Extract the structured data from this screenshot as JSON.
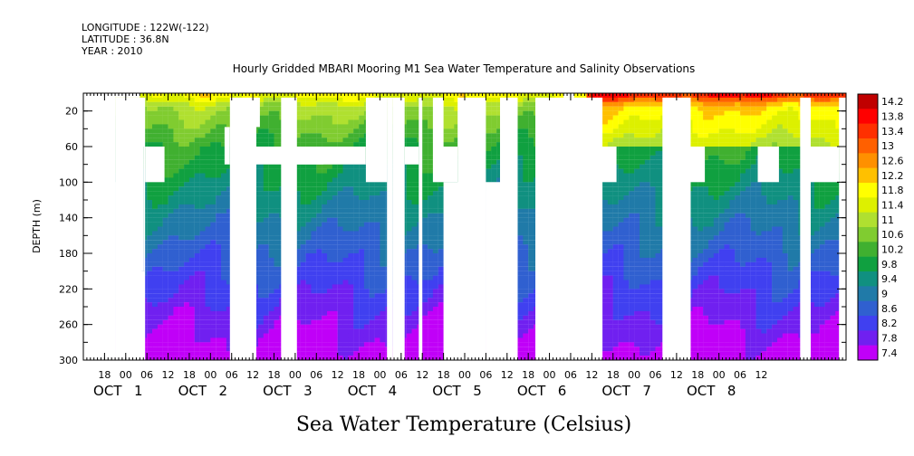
{
  "header": {
    "longitude": "LONGITUDE : 122W(-122)",
    "latitude": "LATITUDE : 36.8N",
    "year": "YEAR : 2010"
  },
  "chart_data": {
    "type": "heatmap",
    "title": "Hourly Gridded MBARI Mooring M1 Sea Water Temperature and Salinity Observations",
    "xlabel": "Sea Water Temperature (Celsius)",
    "ylabel": "DEPTH (m)",
    "xlim_hours": [
      12,
      228
    ],
    "ylim": [
      300,
      0
    ],
    "y_ticks": [
      20,
      60,
      100,
      140,
      180,
      220,
      260,
      300
    ],
    "x_hour_ticks": [
      "18",
      "00",
      "06",
      "12",
      "18",
      "00",
      "06",
      "12",
      "18",
      "00",
      "06",
      "12",
      "18",
      "00",
      "06",
      "12",
      "18",
      "00",
      "06",
      "12",
      "18",
      "00",
      "06",
      "12",
      "18",
      "00",
      "06",
      "12",
      "18",
      "00",
      "06",
      "12"
    ],
    "x_day_labels": [
      {
        "month": "OCT",
        "day": "1"
      },
      {
        "month": "OCT",
        "day": "2"
      },
      {
        "month": "OCT",
        "day": "3"
      },
      {
        "month": "OCT",
        "day": "4"
      },
      {
        "month": "OCT",
        "day": "5"
      },
      {
        "month": "OCT",
        "day": "6"
      },
      {
        "month": "OCT",
        "day": "7"
      },
      {
        "month": "OCT",
        "day": "8"
      }
    ],
    "colorbar": {
      "levels": [
        "14.2",
        "13.8",
        "13.4",
        "13",
        "12.6",
        "12.2",
        "11.8",
        "11.4",
        "11",
        "10.6",
        "10.2",
        "9.8",
        "9.4",
        "9",
        "8.6",
        "8.2",
        "7.8",
        "7.4"
      ],
      "colors": [
        "#c00000",
        "#ff0000",
        "#ff3000",
        "#ff6000",
        "#ff9000",
        "#ffc000",
        "#ffff00",
        "#ddf000",
        "#b0e030",
        "#80cc30",
        "#40b030",
        "#10a040",
        "#109080",
        "#207aa8",
        "#3060d0",
        "#4040f0",
        "#7020f0",
        "#c000f8"
      ]
    }
  }
}
